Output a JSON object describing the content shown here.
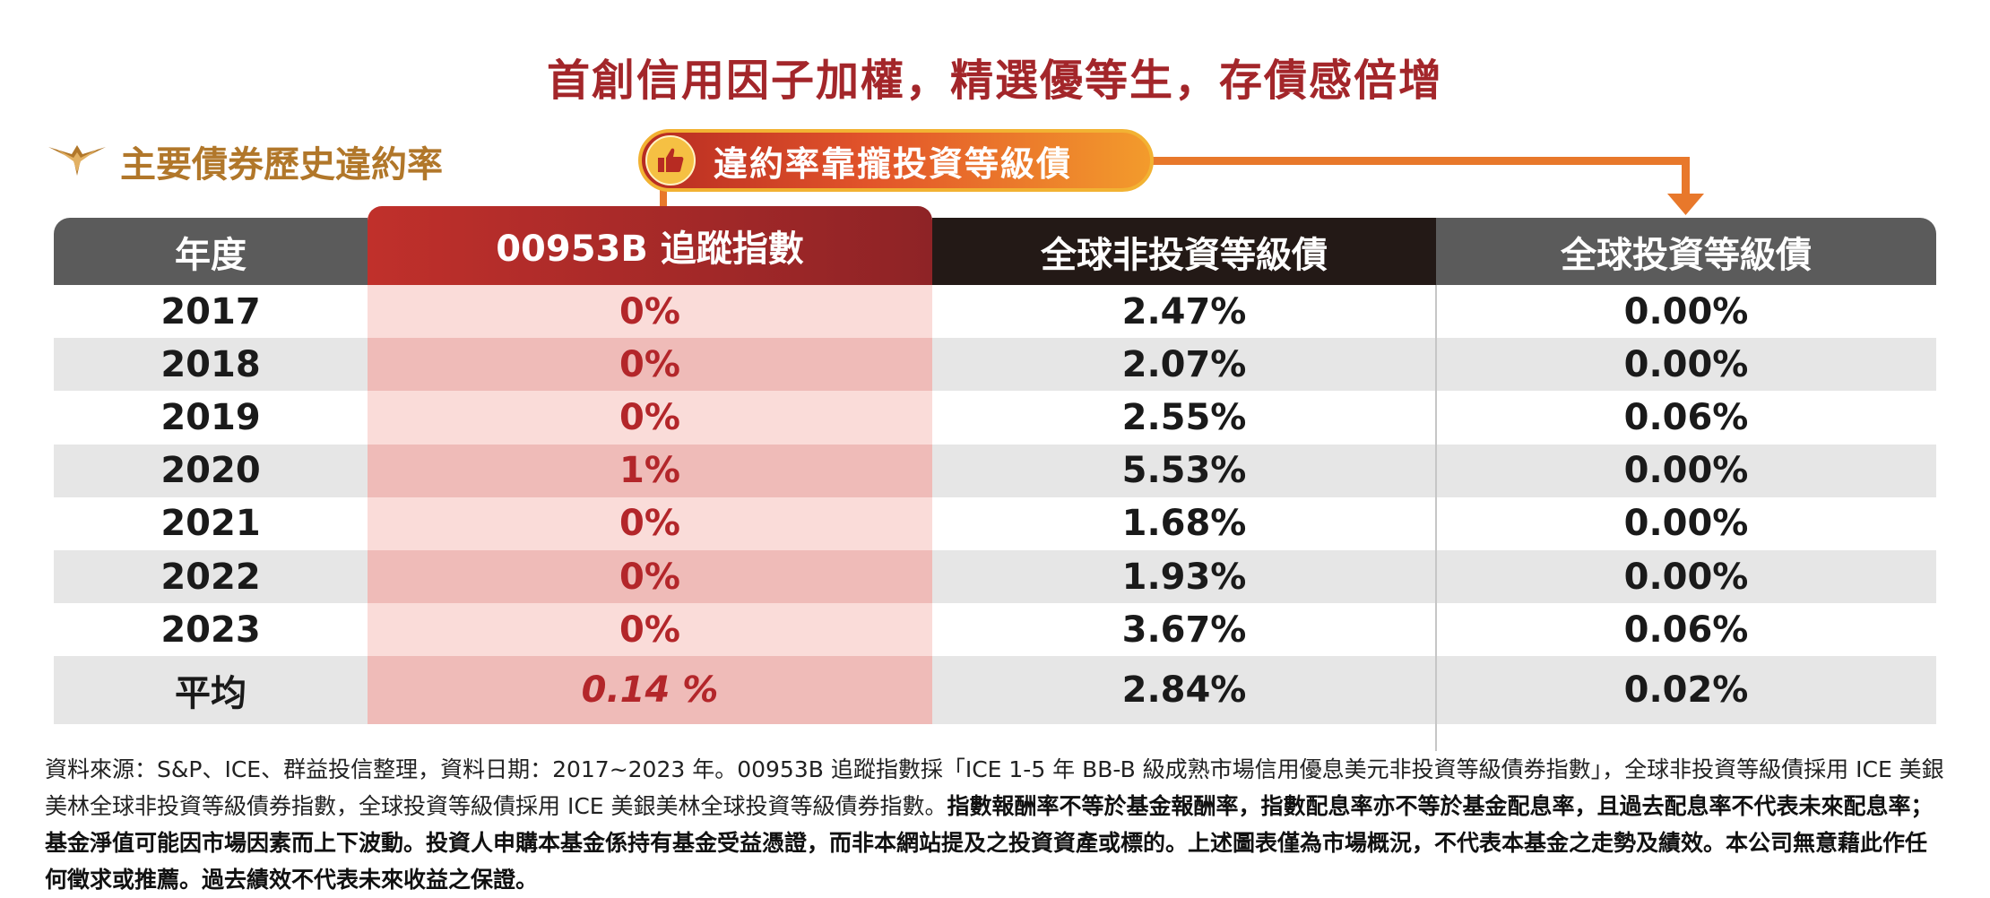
{
  "title": "首創信用因子加權，精選優等生，存債感倍增",
  "section_title": "主要債券歷史違約率",
  "callout": "違約率靠攏投資等級債",
  "colors": {
    "title": "#a3262a",
    "section": "#b1772a",
    "header_gray": "#5b5b5b",
    "header_dark": "#231916",
    "highlight_red": "#b3262a",
    "callout_orange": "#e8782b"
  },
  "chart_data": {
    "type": "table",
    "columns": [
      "年度",
      "00953B 追蹤指數",
      "全球非投資等級債",
      "全球投資等級債"
    ],
    "rows": [
      {
        "year": "2017",
        "index": "0%",
        "hy": "2.47%",
        "ig": "0.00%"
      },
      {
        "year": "2018",
        "index": "0%",
        "hy": "2.07%",
        "ig": "0.00%"
      },
      {
        "year": "2019",
        "index": "0%",
        "hy": "2.55%",
        "ig": "0.06%"
      },
      {
        "year": "2020",
        "index": "1%",
        "hy": "5.53%",
        "ig": "0.00%"
      },
      {
        "year": "2021",
        "index": "0%",
        "hy": "1.68%",
        "ig": "0.00%"
      },
      {
        "year": "2022",
        "index": "0%",
        "hy": "1.93%",
        "ig": "0.00%"
      },
      {
        "year": "2023",
        "index": "0%",
        "hy": "3.67%",
        "ig": "0.06%"
      }
    ],
    "average": {
      "year": "平均",
      "index": "0.14 %",
      "hy": "2.84%",
      "ig": "0.02%"
    }
  },
  "footnote": {
    "normal": "資料來源：S&P、ICE、群益投信整理，資料日期：2017~2023 年。00953B 追蹤指數採「ICE 1-5 年 BB-B 級成熟市場信用優息美元非投資等級債券指數」，全球非投資等級債採用 ICE 美銀美林全球非投資等級債券指數，全球投資等級債採用 ICE 美銀美林全球投資等級債券指數。",
    "bold": "指數報酬率不等於基金報酬率，指數配息率亦不等於基金配息率，且過去配息率不代表未來配息率；基金淨值可能因市場因素而上下波動。投資人申購本基金係持有基金受益憑證，而非本網站提及之投資資產或標的。上述圖表僅為市場概況，不代表本基金之走勢及績效。本公司無意藉此作任何徵求或推薦。過去績效不代表未來收益之保證。"
  }
}
